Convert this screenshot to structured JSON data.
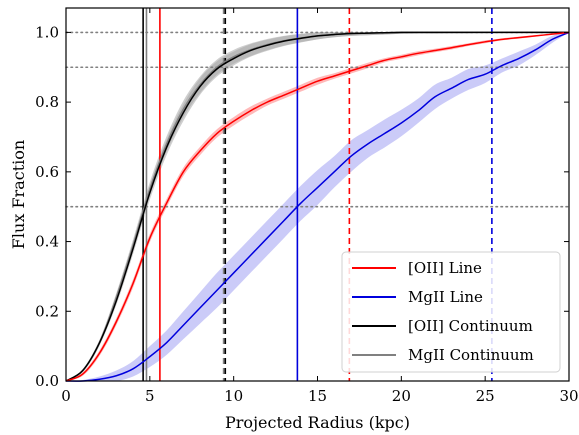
{
  "chart_data": {
    "type": "line",
    "xlabel": "Projected Radius (kpc)",
    "ylabel": "Flux Fraction",
    "xlim": [
      0,
      30
    ],
    "ylim": [
      0,
      1.07
    ],
    "xticks": [
      0,
      5,
      10,
      15,
      20,
      25,
      30
    ],
    "yticks": [
      0.0,
      0.2,
      0.4,
      0.6,
      0.8,
      1.0
    ],
    "xtick_labels": [
      "0",
      "5",
      "10",
      "15",
      "20",
      "25",
      "30"
    ],
    "ytick_labels": [
      "0.0",
      "0.2",
      "0.4",
      "0.6",
      "0.8",
      "1.0"
    ],
    "grid": false,
    "legend_position": "lower-right",
    "reference_lines": [
      0.5,
      0.9,
      1.0
    ],
    "series": [
      {
        "name": "[OII] Line",
        "color": "#ff0000",
        "band_color": "#ff8080",
        "x": [
          0,
          1,
          2,
          3,
          4,
          5,
          6,
          7,
          8,
          9,
          10,
          11,
          12,
          13,
          14,
          15,
          16,
          17,
          18,
          19,
          20,
          21,
          22,
          23,
          24,
          25,
          26,
          27,
          28,
          29,
          30
        ],
        "y": [
          0.0,
          0.02,
          0.08,
          0.17,
          0.28,
          0.41,
          0.51,
          0.6,
          0.66,
          0.71,
          0.745,
          0.775,
          0.8,
          0.82,
          0.84,
          0.86,
          0.875,
          0.89,
          0.905,
          0.92,
          0.93,
          0.94,
          0.948,
          0.956,
          0.965,
          0.973,
          0.98,
          0.985,
          0.99,
          0.995,
          1.0
        ],
        "band": [
          0,
          0.005,
          0.008,
          0.01,
          0.012,
          0.012,
          0.012,
          0.012,
          0.012,
          0.012,
          0.012,
          0.012,
          0.01,
          0.01,
          0.01,
          0.01,
          0.008,
          0.008,
          0.008,
          0.006,
          0.006,
          0.006,
          0.005,
          0.005,
          0.004,
          0.004,
          0.003,
          0.003,
          0.002,
          0.001,
          0
        ],
        "r50": 5.6,
        "r90": 16.9
      },
      {
        "name": "MgII Line",
        "color": "#0000dd",
        "band_color": "#b9b9f5",
        "x": [
          0,
          1,
          2,
          3,
          4,
          5,
          6,
          7,
          8,
          9,
          10,
          11,
          12,
          13,
          14,
          15,
          16,
          17,
          18,
          19,
          20,
          21,
          22,
          23,
          24,
          25,
          26,
          27,
          28,
          29,
          30
        ],
        "y": [
          0.0,
          0.0,
          0.005,
          0.015,
          0.035,
          0.07,
          0.11,
          0.16,
          0.21,
          0.26,
          0.31,
          0.36,
          0.41,
          0.46,
          0.51,
          0.555,
          0.6,
          0.645,
          0.68,
          0.71,
          0.74,
          0.775,
          0.815,
          0.84,
          0.865,
          0.88,
          0.905,
          0.925,
          0.95,
          0.98,
          1.0
        ],
        "band": [
          0,
          0.003,
          0.008,
          0.015,
          0.022,
          0.03,
          0.035,
          0.04,
          0.045,
          0.05,
          0.05,
          0.05,
          0.05,
          0.05,
          0.05,
          0.05,
          0.045,
          0.045,
          0.04,
          0.04,
          0.038,
          0.035,
          0.035,
          0.03,
          0.03,
          0.025,
          0.02,
          0.02,
          0.015,
          0.01,
          0
        ],
        "r50": 13.8,
        "r90": 25.4
      },
      {
        "name": "[OII] Continuum",
        "color": "#000000",
        "band_color": "#a8a8a8",
        "x": [
          0,
          1,
          2,
          3,
          4,
          5,
          6,
          7,
          8,
          9,
          10,
          11,
          12,
          13,
          14,
          15,
          16,
          17,
          18,
          19,
          20,
          21,
          22,
          23,
          24,
          25,
          26,
          27,
          28,
          29,
          30
        ],
        "y": [
          0.0,
          0.03,
          0.11,
          0.23,
          0.38,
          0.54,
          0.67,
          0.77,
          0.845,
          0.895,
          0.925,
          0.948,
          0.963,
          0.975,
          0.983,
          0.99,
          0.994,
          0.997,
          0.998,
          0.999,
          1.0,
          1.0,
          1.0,
          1.0,
          1.0,
          1.0,
          1.0,
          1.0,
          1.0,
          1.0,
          1.0
        ],
        "band": [
          0,
          0.004,
          0.008,
          0.012,
          0.016,
          0.02,
          0.022,
          0.024,
          0.024,
          0.022,
          0.02,
          0.018,
          0.016,
          0.014,
          0.012,
          0.01,
          0.008,
          0.007,
          0.006,
          0.005,
          0.004,
          0.003,
          0.003,
          0.002,
          0.002,
          0.001,
          0.001,
          0.001,
          0.001,
          0.0,
          0
        ],
        "r50": 4.6,
        "r90": 9.5
      },
      {
        "name": "MgII Continuum",
        "color": "#808080",
        "band_color": "#a8a8a8",
        "x": [
          0,
          1,
          2,
          3,
          4,
          5,
          6,
          7,
          8,
          9,
          10,
          11,
          12,
          13,
          14,
          15,
          16,
          17,
          18,
          19,
          20,
          21,
          22,
          23,
          24,
          25,
          26,
          27,
          28,
          29,
          30
        ],
        "y": [
          0.0,
          0.03,
          0.11,
          0.24,
          0.39,
          0.55,
          0.68,
          0.78,
          0.85,
          0.9,
          0.93,
          0.95,
          0.965,
          0.976,
          0.984,
          0.99,
          0.994,
          0.997,
          0.998,
          0.999,
          1.0,
          1.0,
          1.0,
          1.0,
          1.0,
          1.0,
          1.0,
          1.0,
          1.0,
          1.0,
          1.0
        ],
        "band": [
          0,
          0.004,
          0.008,
          0.012,
          0.016,
          0.02,
          0.022,
          0.024,
          0.024,
          0.022,
          0.02,
          0.018,
          0.016,
          0.014,
          0.012,
          0.01,
          0.008,
          0.007,
          0.006,
          0.005,
          0.004,
          0.003,
          0.003,
          0.002,
          0.002,
          0.001,
          0.001,
          0.001,
          0.001,
          0.0,
          0
        ],
        "r50": 4.8,
        "r90": 9.4
      }
    ]
  }
}
